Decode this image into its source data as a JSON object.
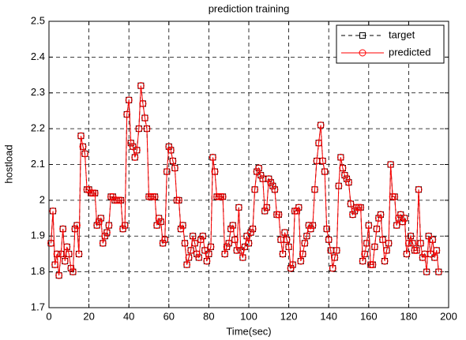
{
  "chart_data": {
    "type": "line",
    "title": "prediction training",
    "x_label": "Time(sec)",
    "y_label": "hostload",
    "x": [
      1,
      2,
      3,
      4,
      5,
      6,
      7,
      8,
      9,
      10,
      11,
      12,
      13,
      14,
      15,
      16,
      17,
      18,
      19,
      20,
      21,
      22,
      23,
      24,
      25,
      26,
      27,
      28,
      29,
      30,
      31,
      32,
      33,
      34,
      35,
      36,
      37,
      38,
      39,
      40,
      41,
      42,
      43,
      44,
      45,
      46,
      47,
      48,
      49,
      50,
      51,
      52,
      53,
      54,
      55,
      56,
      57,
      58,
      59,
      60,
      61,
      62,
      63,
      64,
      65,
      66,
      67,
      68,
      69,
      70,
      71,
      72,
      73,
      74,
      75,
      76,
      77,
      78,
      79,
      80,
      81,
      82,
      83,
      84,
      85,
      86,
      87,
      88,
      89,
      90,
      91,
      92,
      93,
      94,
      95,
      96,
      97,
      98,
      99,
      100,
      101,
      102,
      103,
      104,
      105,
      106,
      107,
      108,
      109,
      110,
      111,
      112,
      113,
      114,
      115,
      116,
      117,
      118,
      119,
      120,
      121,
      122,
      123,
      124,
      125,
      126,
      127,
      128,
      129,
      130,
      131,
      132,
      133,
      134,
      135,
      136,
      137,
      138,
      139,
      140,
      141,
      142,
      143,
      144,
      145,
      146,
      147,
      148,
      149,
      150,
      151,
      152,
      153,
      154,
      155,
      156,
      157,
      158,
      159,
      160,
      161,
      162,
      163,
      164,
      165,
      166,
      167,
      168,
      169,
      170,
      171,
      172,
      173,
      174,
      175,
      176,
      177,
      178,
      179,
      180,
      181,
      182,
      183,
      184,
      185,
      186,
      187,
      188,
      189,
      190,
      191,
      192,
      193,
      194,
      195
    ],
    "series": [
      {
        "name": "target",
        "color": "#000000",
        "marker": "square",
        "dash": true,
        "values": [
          1.88,
          1.97,
          1.82,
          1.85,
          1.79,
          1.85,
          1.92,
          1.83,
          1.87,
          1.85,
          1.81,
          1.8,
          1.92,
          1.93,
          1.85,
          2.18,
          2.15,
          2.13,
          2.03,
          2.03,
          2.02,
          2.02,
          2.02,
          1.93,
          1.94,
          1.95,
          1.88,
          1.9,
          1.91,
          1.93,
          2.01,
          2.01,
          2.0,
          2.0,
          2.0,
          2.0,
          1.92,
          1.93,
          2.24,
          2.28,
          2.16,
          2.15,
          2.12,
          2.14,
          2.2,
          2.32,
          2.27,
          2.23,
          2.2,
          2.01,
          2.01,
          2.01,
          2.01,
          1.93,
          1.95,
          1.94,
          1.88,
          1.89,
          2.08,
          2.15,
          2.14,
          2.11,
          2.09,
          2.0,
          2.0,
          1.92,
          1.93,
          1.88,
          1.82,
          1.84,
          1.86,
          1.9,
          1.88,
          1.85,
          1.84,
          1.89,
          1.9,
          1.86,
          1.83,
          1.85,
          1.87,
          2.12,
          2.08,
          2.01,
          2.01,
          2.01,
          2.01,
          1.85,
          1.87,
          1.88,
          1.92,
          1.93,
          1.89,
          1.86,
          1.98,
          1.86,
          1.84,
          1.87,
          1.9,
          1.88,
          1.91,
          1.92,
          2.03,
          2.08,
          2.09,
          2.07,
          2.06,
          1.97,
          1.98,
          2.06,
          2.05,
          2.04,
          2.03,
          1.96,
          1.96,
          1.89,
          1.85,
          1.91,
          1.89,
          1.87,
          1.81,
          1.82,
          1.97,
          1.97,
          1.98,
          1.83,
          1.85,
          1.88,
          1.9,
          1.93,
          1.92,
          1.93,
          2.03,
          2.11,
          2.16,
          2.21,
          2.11,
          2.08,
          1.92,
          1.89,
          1.86,
          1.81,
          1.84,
          1.86,
          2.04,
          2.12,
          2.09,
          2.07,
          2.06,
          2.05,
          1.99,
          1.96,
          1.97,
          1.98,
          1.98,
          1.98,
          1.83,
          1.85,
          1.88,
          1.93,
          1.82,
          1.82,
          1.87,
          1.92,
          1.95,
          1.96,
          1.89,
          1.83,
          1.86,
          1.88,
          2.1,
          2.01,
          2.01,
          1.93,
          1.95,
          1.96,
          1.94,
          1.95,
          1.85,
          1.88,
          1.9,
          1.88,
          1.86,
          1.86,
          2.03,
          1.88,
          1.84,
          1.85,
          1.8,
          1.9,
          1.85,
          1.89,
          1.84,
          1.86,
          1.8
        ]
      },
      {
        "name": "predicted",
        "color": "#ff0000",
        "marker": "circle",
        "dash": false,
        "values": [
          1.88,
          1.97,
          1.82,
          1.85,
          1.79,
          1.85,
          1.92,
          1.83,
          1.87,
          1.85,
          1.81,
          1.8,
          1.92,
          1.93,
          1.85,
          2.18,
          2.15,
          2.13,
          2.03,
          2.03,
          2.02,
          2.02,
          2.02,
          1.93,
          1.94,
          1.95,
          1.88,
          1.9,
          1.91,
          1.93,
          2.01,
          2.01,
          2.0,
          2.0,
          2.0,
          2.0,
          1.92,
          1.93,
          2.24,
          2.28,
          2.16,
          2.15,
          2.12,
          2.14,
          2.2,
          2.32,
          2.27,
          2.23,
          2.2,
          2.01,
          2.01,
          2.01,
          2.01,
          1.93,
          1.95,
          1.94,
          1.88,
          1.89,
          2.08,
          2.15,
          2.14,
          2.11,
          2.09,
          2.0,
          2.0,
          1.92,
          1.93,
          1.88,
          1.82,
          1.84,
          1.86,
          1.9,
          1.88,
          1.85,
          1.84,
          1.89,
          1.9,
          1.86,
          1.83,
          1.85,
          1.87,
          2.12,
          2.08,
          2.01,
          2.01,
          2.01,
          2.01,
          1.85,
          1.87,
          1.88,
          1.92,
          1.93,
          1.89,
          1.86,
          1.98,
          1.86,
          1.84,
          1.87,
          1.9,
          1.88,
          1.91,
          1.92,
          2.03,
          2.08,
          2.09,
          2.07,
          2.06,
          1.97,
          1.98,
          2.06,
          2.05,
          2.04,
          2.03,
          1.96,
          1.96,
          1.89,
          1.85,
          1.91,
          1.89,
          1.87,
          1.81,
          1.82,
          1.97,
          1.97,
          1.98,
          1.83,
          1.85,
          1.88,
          1.9,
          1.93,
          1.92,
          1.93,
          2.03,
          2.11,
          2.16,
          2.21,
          2.11,
          2.08,
          1.92,
          1.89,
          1.86,
          1.81,
          1.84,
          1.86,
          2.04,
          2.12,
          2.09,
          2.07,
          2.06,
          2.05,
          1.99,
          1.96,
          1.97,
          1.98,
          1.98,
          1.98,
          1.83,
          1.85,
          1.88,
          1.93,
          1.82,
          1.82,
          1.87,
          1.92,
          1.95,
          1.96,
          1.89,
          1.83,
          1.86,
          1.88,
          2.1,
          2.01,
          2.01,
          1.93,
          1.95,
          1.96,
          1.94,
          1.95,
          1.85,
          1.88,
          1.9,
          1.88,
          1.86,
          1.86,
          2.03,
          1.88,
          1.84,
          1.85,
          1.8,
          1.9,
          1.85,
          1.89,
          1.84,
          1.86,
          1.8
        ]
      }
    ],
    "xlim": [
      0,
      200
    ],
    "xticks": [
      0,
      20,
      40,
      60,
      80,
      100,
      120,
      140,
      160,
      180,
      200
    ],
    "ylim": [
      1.7,
      2.5
    ],
    "yticks": [
      1.7,
      1.8,
      1.9,
      2,
      2.1,
      2.2,
      2.3,
      2.4,
      2.5
    ],
    "grid": true,
    "legend": "upper right"
  }
}
